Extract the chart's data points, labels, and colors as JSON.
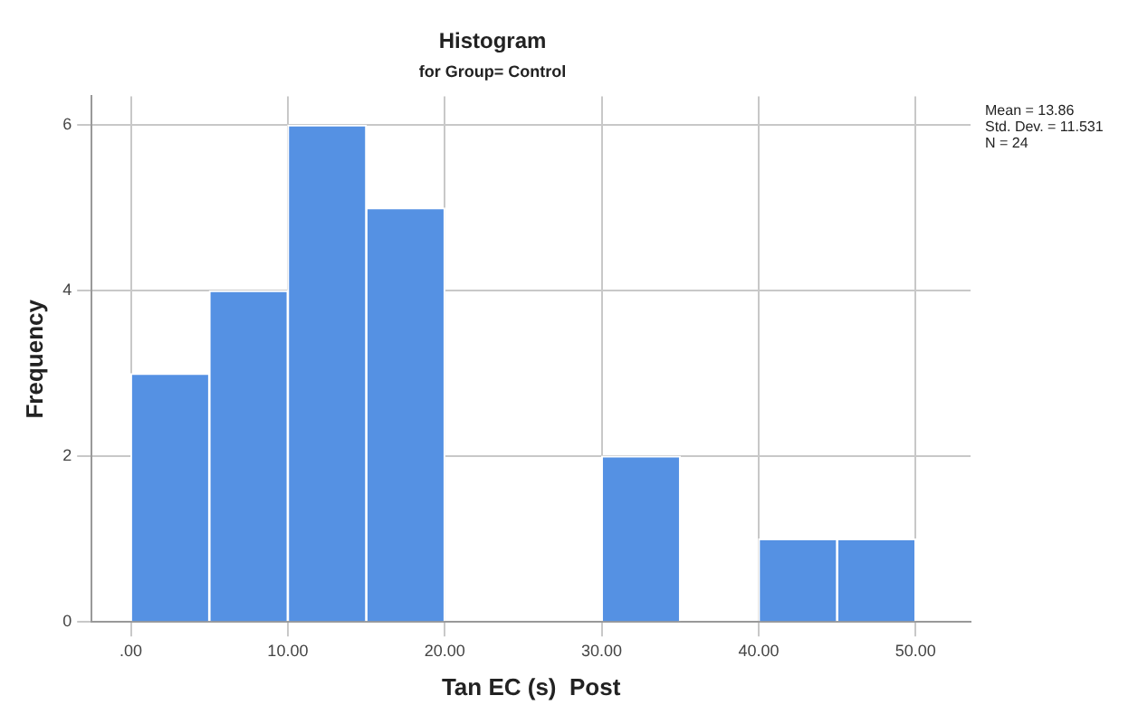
{
  "chart_data": {
    "type": "histogram",
    "title": "Histogram",
    "subtitle": "for Group= Control",
    "xlabel": "Tan EC (s)  Post",
    "ylabel": "Frequency",
    "bins": [
      0,
      5,
      10,
      15,
      20,
      25,
      30,
      35,
      40,
      45,
      50
    ],
    "values": [
      3,
      4,
      6,
      5,
      0,
      0,
      2,
      0,
      1,
      1
    ],
    "color": "#5591e3",
    "xlim": [
      -2.5,
      53.5
    ],
    "xticks": [
      {
        "value": 0,
        "label": ".00"
      },
      {
        "value": 10,
        "label": "10.00"
      },
      {
        "value": 20,
        "label": "20.00"
      },
      {
        "value": 30,
        "label": "30.00"
      },
      {
        "value": 40,
        "label": "40.00"
      },
      {
        "value": 50,
        "label": "50.00"
      }
    ],
    "ylim": [
      0,
      6.35
    ],
    "yticks": [
      0,
      2,
      4,
      6
    ],
    "grid": true,
    "annotations": [
      "Mean = 13.86\nStd. Dev. = 11.531\nN = 24"
    ]
  }
}
